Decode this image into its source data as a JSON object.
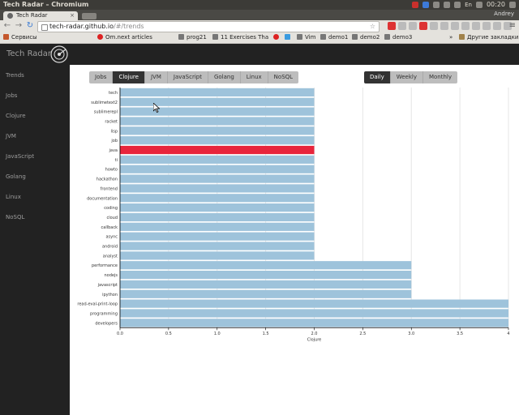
{
  "os": {
    "window_title": "Tech Radar – Chromium",
    "clock": "00:20",
    "tray_label": "En"
  },
  "browser": {
    "tab_title": "Tech Radar",
    "tab_close": "×",
    "user_name": "Andrey",
    "url_host": "tech-radar.github.io",
    "url_path": "/#/trends",
    "bookmarks": [
      {
        "label": "Сервисы",
        "icon": "apps-grid-icon"
      },
      {
        "label": "Om.next articles",
        "icon": "bookmark-favicon-red"
      },
      {
        "label": "prog21",
        "icon": "bookmark-favicon-gray"
      },
      {
        "label": "11 Exercises Tha",
        "icon": "bookmark-favicon-gray"
      },
      {
        "label": "Vim",
        "icon": "bookmark-favicon-gray"
      },
      {
        "label": "demo1",
        "icon": "github-icon"
      },
      {
        "label": "demo2",
        "icon": "github-icon"
      },
      {
        "label": "demo3",
        "icon": "github-icon"
      }
    ],
    "bookmarks_overflow": "»",
    "other_bookmarks": "Другие закладки"
  },
  "app": {
    "brand": "Tech Radar",
    "sidebar": [
      "Trends",
      "Jobs",
      "Clojure",
      "JVM",
      "JavaScript",
      "Golang",
      "Linux",
      "NoSQL"
    ],
    "lang_tabs": [
      "Jobs",
      "Clojure",
      "JVM",
      "JavaScript",
      "Golang",
      "Linux",
      "NoSQL"
    ],
    "lang_active": "Clojure",
    "period_tabs": [
      "Daily",
      "Weekly",
      "Monthly"
    ],
    "period_active": "Daily"
  },
  "colors": {
    "bar": "#9ec3db",
    "highlight": "#e8253c",
    "sidebar_bg": "#222222",
    "active_btn": "#333333"
  },
  "chart_data": {
    "type": "bar",
    "orientation": "horizontal",
    "xlabel": "Clojure",
    "xlim": [
      0,
      4
    ],
    "x_ticks": [
      "0.0",
      "0.5",
      "1.0",
      "1.5",
      "2.0",
      "2.5",
      "3.0",
      "3.5",
      "4"
    ],
    "grid": true,
    "highlighted": "java",
    "categories": [
      "tech",
      "sublimetext2",
      "sublimerepl",
      "racket",
      "lisp",
      "job",
      "java",
      "ti",
      "howto",
      "hackathon",
      "frontend",
      "documentation",
      "coding",
      "cloud",
      "callback",
      "async",
      "android",
      "analyst",
      "performance",
      "nodejs",
      "javascript",
      "ipython",
      "read-eval-print-loop",
      "programming",
      "developers"
    ],
    "values": [
      2,
      2,
      2,
      2,
      2,
      2,
      2,
      2,
      2,
      2,
      2,
      2,
      2,
      2,
      2,
      2,
      2,
      2,
      3,
      3,
      3,
      3,
      4,
      4,
      4
    ]
  }
}
